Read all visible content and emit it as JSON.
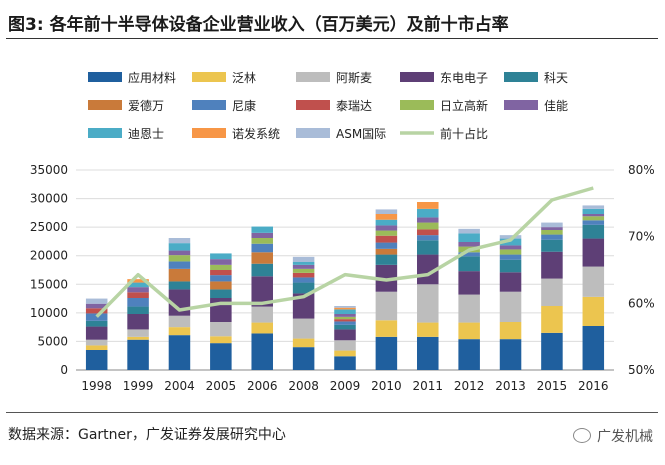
{
  "figure": {
    "label": "图3:",
    "title": "各年前十半导体设备企业营业收入（百万美元）及前十市占率"
  },
  "footer": {
    "source": "数据来源：Gartner，广发证券发展研究中心"
  },
  "brand": {
    "name": "广发机械",
    "icon": "wechat-icon"
  },
  "chart_data": {
    "type": "bar",
    "stacked": true,
    "categories": [
      "1998",
      "1999",
      "2004",
      "2005",
      "2006",
      "2008",
      "2009",
      "2010",
      "2011",
      "2012",
      "2013",
      "2015",
      "2016"
    ],
    "ylim": [
      0,
      35000
    ],
    "yticks": [
      0,
      5000,
      10000,
      15000,
      20000,
      25000,
      30000,
      35000
    ],
    "ylim_right": [
      50,
      80
    ],
    "yticks_right_labels": [
      "50%",
      "60%",
      "70%",
      "80%"
    ],
    "yticks_right_values": [
      50,
      60,
      70,
      80
    ],
    "legend_position": "top",
    "series": [
      {
        "name": "应用材料",
        "color": "#1f5f9e",
        "values": [
          3500,
          5300,
          6100,
          4700,
          6400,
          4000,
          2400,
          5800,
          5800,
          5400,
          5400,
          6500,
          7700
        ]
      },
      {
        "name": "泛林",
        "color": "#ecc54f",
        "values": [
          800,
          500,
          1400,
          1200,
          1900,
          1500,
          1000,
          2900,
          2500,
          2900,
          3000,
          4700,
          5100
        ]
      },
      {
        "name": "阿斯麦",
        "color": "#bdbdbd",
        "values": [
          1000,
          1300,
          2000,
          2500,
          2800,
          3500,
          1800,
          5000,
          6700,
          4900,
          5300,
          4800,
          5300
        ]
      },
      {
        "name": "东电电子",
        "color": "#5e3f76",
        "values": [
          2300,
          2700,
          4600,
          4200,
          5300,
          4400,
          1900,
          4700,
          5200,
          4100,
          3400,
          4700,
          4900
        ]
      },
      {
        "name": "科天",
        "color": "#2e8296",
        "values": [
          1000,
          1300,
          1400,
          1500,
          2200,
          1900,
          800,
          1800,
          2500,
          2600,
          2200,
          2100,
          2400
        ]
      },
      {
        "name": "爱德万",
        "color": "#c97a3a",
        "values": [
          0,
          0,
          2200,
          1400,
          2000,
          0,
          0,
          1000,
          0,
          0,
          0,
          0,
          0
        ]
      },
      {
        "name": "尼康",
        "color": "#4f81bd",
        "values": [
          1300,
          1500,
          1300,
          1100,
          1500,
          900,
          600,
          1100,
          900,
          700,
          900,
          900,
          800
        ]
      },
      {
        "name": "泰瑞达",
        "color": "#c0504d",
        "values": [
          900,
          1000,
          0,
          900,
          0,
          800,
          400,
          1200,
          1000,
          0,
          0,
          0,
          0
        ]
      },
      {
        "name": "日立高新",
        "color": "#9bbb59",
        "values": [
          0,
          0,
          1100,
          900,
          1000,
          700,
          400,
          900,
          1200,
          1000,
          900,
          800,
          700
        ]
      },
      {
        "name": "佳能",
        "color": "#8064a2",
        "values": [
          800,
          900,
          800,
          1000,
          900,
          700,
          500,
          900,
          900,
          800,
          700,
          500,
          400
        ]
      },
      {
        "name": "迪恩士",
        "color": "#4bacc6",
        "values": [
          0,
          800,
          1300,
          1000,
          1100,
          500,
          800,
          1000,
          1500,
          1500,
          1200,
          0,
          900
        ]
      },
      {
        "name": "诺发系统",
        "color": "#f79646",
        "values": [
          0,
          600,
          0,
          0,
          0,
          0,
          300,
          1000,
          1200,
          0,
          0,
          0,
          0
        ]
      },
      {
        "name": "ASM国际",
        "color": "#a9bcd8",
        "values": [
          900,
          0,
          900,
          0,
          0,
          900,
          300,
          800,
          0,
          800,
          600,
          800,
          600
        ]
      }
    ],
    "line": {
      "name": "前十占比",
      "color": "#b8d4a4",
      "axis": "right",
      "values": [
        58,
        64.3,
        59,
        60,
        60,
        61,
        64.3,
        63.5,
        64.3,
        68,
        69.5,
        75.5,
        77.3
      ]
    }
  }
}
